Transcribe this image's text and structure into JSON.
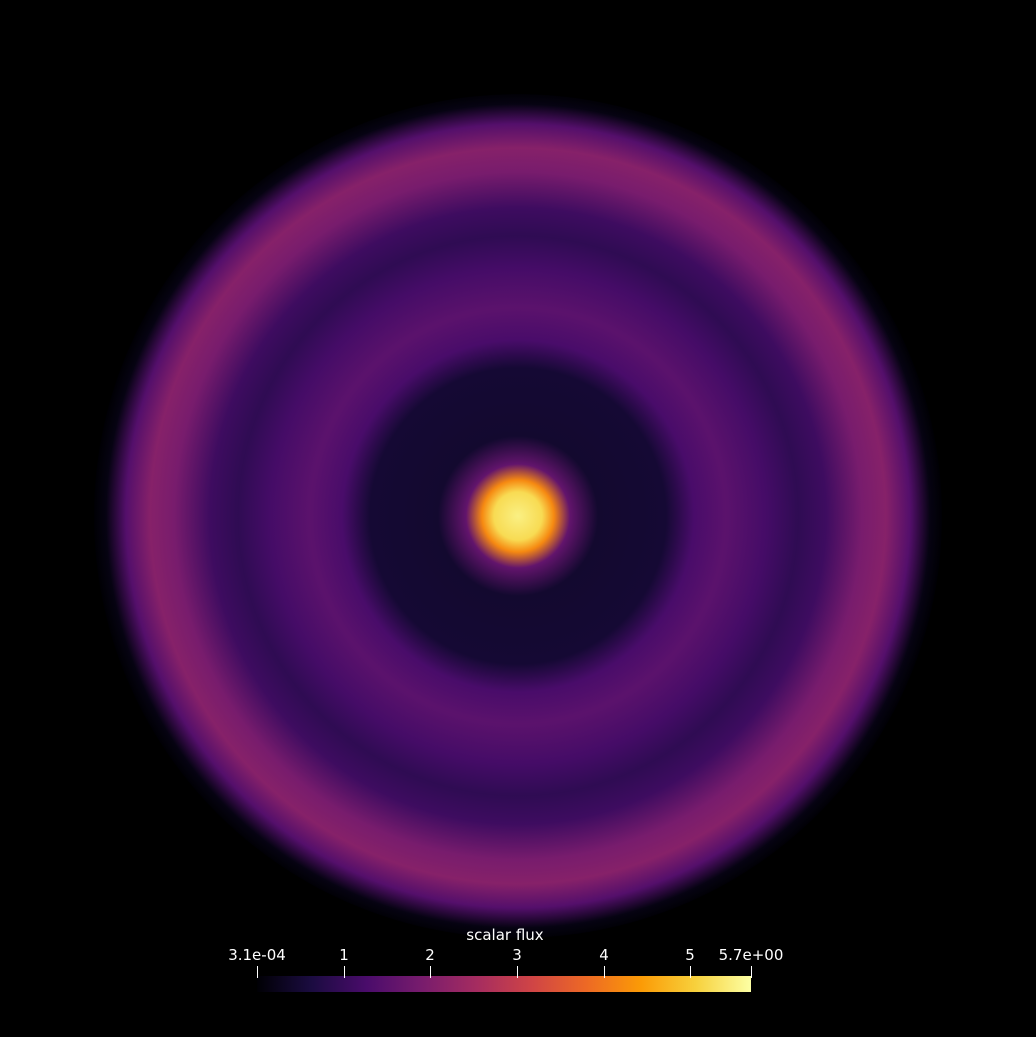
{
  "colorbar": {
    "title": "scalar flux",
    "min_label": "3.1e-04",
    "max_label": "5.7e+00",
    "min_value": 0.00031,
    "max_value": 5.7,
    "ticks": [
      {
        "label": "3.1e-04",
        "value": 0.00031
      },
      {
        "label": "1",
        "value": 1
      },
      {
        "label": "2",
        "value": 2
      },
      {
        "label": "3",
        "value": 3
      },
      {
        "label": "4",
        "value": 4
      },
      {
        "label": "5",
        "value": 5
      },
      {
        "label": "5.7e+00",
        "value": 5.7
      }
    ],
    "colormap": "inferno",
    "colormap_stops": [
      "#000004",
      "#1b0c41",
      "#4a0c6b",
      "#781c6d",
      "#a52c60",
      "#cf4446",
      "#ed6925",
      "#fb9b06",
      "#f7d13d",
      "#fcffa4"
    ]
  },
  "field": {
    "background": "#000000",
    "radial_profile": [
      {
        "r": 0.0,
        "value": 5.5
      },
      {
        "r": 0.06,
        "value": 5.2
      },
      {
        "r": 0.09,
        "value": 4.2
      },
      {
        "r": 0.13,
        "value": 1.6
      },
      {
        "r": 0.2,
        "value": 0.45
      },
      {
        "r": 0.37,
        "value": 0.5
      },
      {
        "r": 0.44,
        "value": 1.25
      },
      {
        "r": 0.52,
        "value": 1.5
      },
      {
        "r": 0.62,
        "value": 1.2
      },
      {
        "r": 0.7,
        "value": 0.9
      },
      {
        "r": 0.77,
        "value": 1.1
      },
      {
        "r": 0.86,
        "value": 1.9
      },
      {
        "r": 0.92,
        "value": 2.1
      },
      {
        "r": 0.98,
        "value": 1.4
      },
      {
        "r": 1.03,
        "value": 0.15
      },
      {
        "r": 1.06,
        "value": 0.0
      }
    ]
  }
}
